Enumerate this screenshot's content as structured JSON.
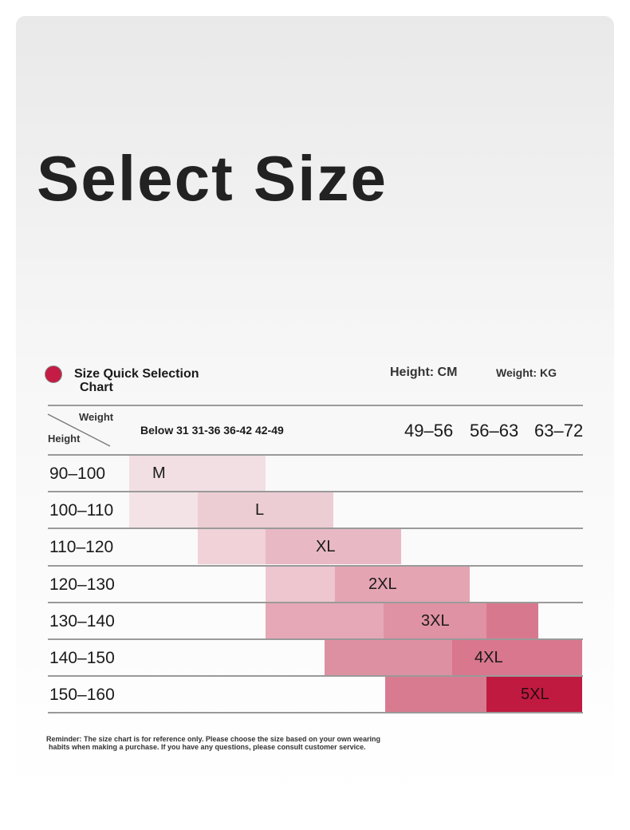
{
  "header": {
    "title": "Select Size"
  },
  "chart_section": {
    "title_line1": "Size Quick Selection",
    "title_line2": "Chart",
    "height_unit": "Height: CM",
    "weight_unit": "Weight: KG"
  },
  "table": {
    "corner_weight": "Weight",
    "corner_height": "Height",
    "weight_columns": [
      "Below 31 31-36 36-42 42-49",
      "49–56",
      "56–63",
      "63–72"
    ],
    "rows": [
      [
        "90–100",
        "M"
      ],
      [
        "100–110",
        "L"
      ],
      [
        "110–120",
        "XL"
      ],
      [
        "120–130",
        "2XL"
      ],
      [
        "130–140",
        "3XL"
      ],
      [
        "140–150",
        "4XL"
      ],
      [
        "150–160",
        "5XL"
      ]
    ]
  },
  "footer": {
    "line1": "Reminder: The size chart is for reference only. Please choose the size based on your own wearing",
    "line2": "habits when making a purchase. If you have any questions, please consult customer service."
  }
}
